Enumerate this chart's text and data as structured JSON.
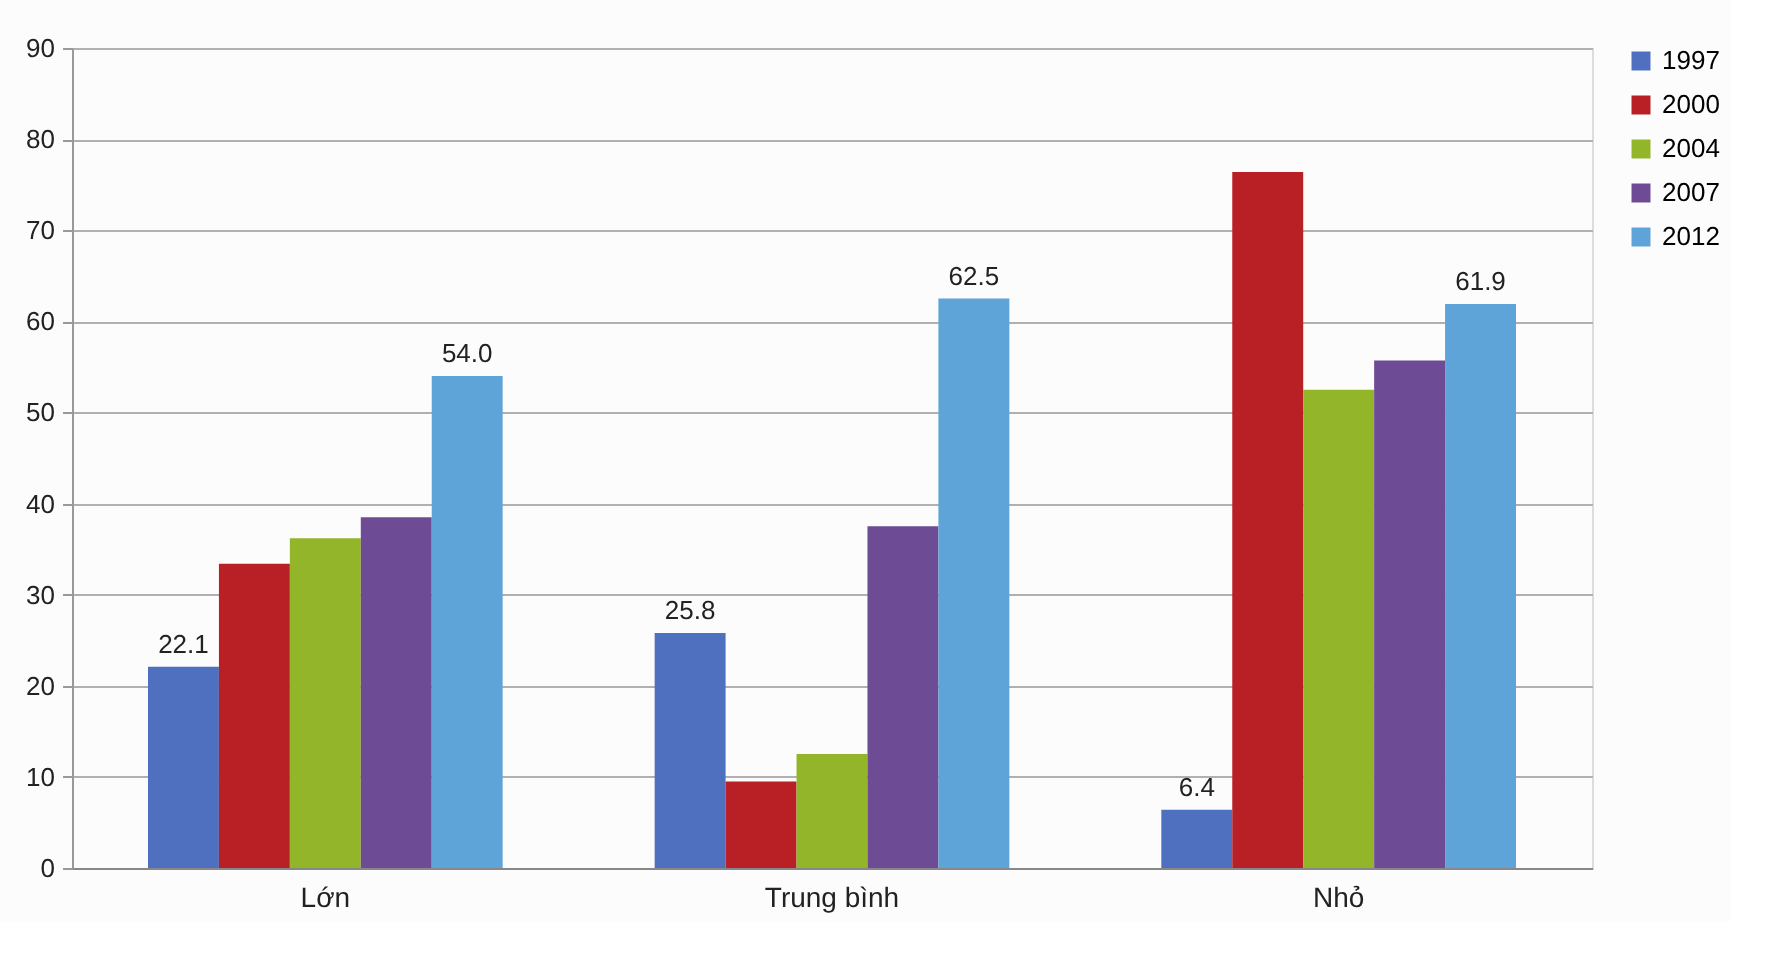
{
  "chart_data": {
    "type": "bar",
    "categories": [
      "Lớn",
      "Trung bình",
      "Nhỏ"
    ],
    "series": [
      {
        "name": "1997",
        "color": "#4f6fbf",
        "values": [
          22.1,
          25.8,
          6.4
        ],
        "value_labels": [
          "22.1",
          "25.8",
          "6.4"
        ]
      },
      {
        "name": "2000",
        "color": "#b82025",
        "values": [
          33.4,
          9.5,
          76.4
        ]
      },
      {
        "name": "2004",
        "color": "#93b52a",
        "values": [
          36.2,
          12.5,
          52.5
        ]
      },
      {
        "name": "2007",
        "color": "#6e4c95",
        "values": [
          38.5,
          37.5,
          55.7
        ]
      },
      {
        "name": "2012",
        "color": "#5fa4d8",
        "values": [
          54.0,
          62.5,
          61.9
        ],
        "value_labels": [
          "54.0",
          "62.5",
          "61.9"
        ]
      }
    ],
    "ylim": [
      0,
      90
    ],
    "yticks": [
      0,
      10,
      20,
      30,
      40,
      50,
      60,
      70,
      80,
      90
    ],
    "grid": "y",
    "legend": "right"
  }
}
